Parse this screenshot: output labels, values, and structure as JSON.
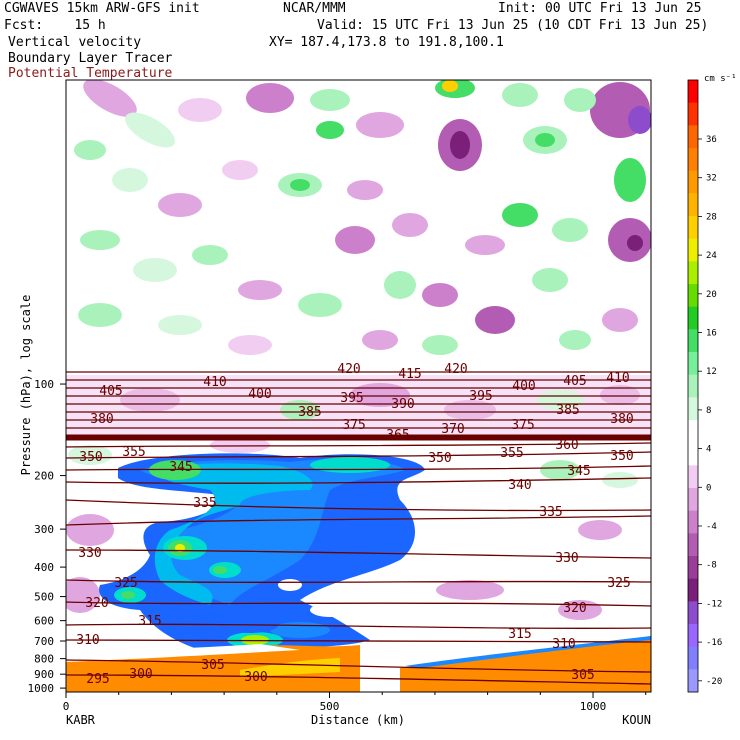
{
  "header": {
    "left": [
      "CGWAVES 15km ARW-GFS init",
      "Fcst:    15 h",
      "Vertical velocity",
      "Boundary Layer Tracer",
      "Potential Temperature"
    ],
    "center": [
      "NCAR/MMM",
      "XY= 187.4,173.8 to 191.8,100.1"
    ],
    "right": [
      "Init: 00 UTC Fri 13 Jun 25",
      "Valid: 15 UTC Fri 13 Jun 25 (10 CDT Fri 13 Jun 25)"
    ]
  },
  "colors": {
    "theta": "#6b0000",
    "potential_temperature_label": "#8b1a1a",
    "terrain": "#ff8c00"
  },
  "chart_data": {
    "type": "heatmap",
    "xlabel": "Distance (km)",
    "ylabel": "Pressure (hPa), log scale",
    "x_ticks": [
      0,
      500,
      1000
    ],
    "xlim": [
      0,
      1110
    ],
    "y_ticks": [
      100,
      200,
      300,
      400,
      500,
      600,
      700,
      800,
      900,
      1000
    ],
    "y_scale": "log",
    "endpoint_left": "KABR",
    "endpoint_right": "KOUN",
    "colorbar": {
      "units": "cm s⁻¹",
      "tick_labels": [
        "36",
        "32",
        "28",
        "24",
        "20",
        "16",
        "12",
        "8",
        "4",
        "0",
        "-4",
        "-8",
        "-12",
        "-16",
        "-20"
      ],
      "colors": [
        "#ff0000",
        "#ff3300",
        "#ff6600",
        "#ff7f00",
        "#ff9900",
        "#ffb300",
        "#ffd000",
        "#eeee00",
        "#aaee00",
        "#66dd00",
        "#22cc22",
        "#44dd66",
        "#77ee99",
        "#aaf2bb",
        "#d4f7dd",
        "#ffffff",
        "#ffffff",
        "#f2cdf2",
        "#e0a6e0",
        "#cc80cc",
        "#b35cb3",
        "#993d99",
        "#7a1f7a",
        "#8c4ccc",
        "#9966ff",
        "#8080ff",
        "#9999ff"
      ]
    },
    "isentrope_labels": [
      "420",
      "415",
      "420",
      "410",
      "405",
      "410",
      "405",
      "400",
      "400",
      "395",
      "390",
      "395",
      "385",
      "385",
      "380",
      "380",
      "375",
      "365",
      "370",
      "375",
      "355",
      "350",
      "360",
      "350",
      "345",
      "345",
      "350",
      "355",
      "340",
      "335",
      "335",
      "330",
      "330",
      "325",
      "325",
      "320",
      "320",
      "315",
      "315",
      "310",
      "310",
      "305",
      "305",
      "300",
      "300",
      "295"
    ],
    "features": [
      "tropopause near 140-150 hPa",
      "stratospheric isentropes 360-420 K",
      "tropospheric updraft plume 200-700 hPa",
      "orange boundary layer tracer near surface"
    ]
  }
}
